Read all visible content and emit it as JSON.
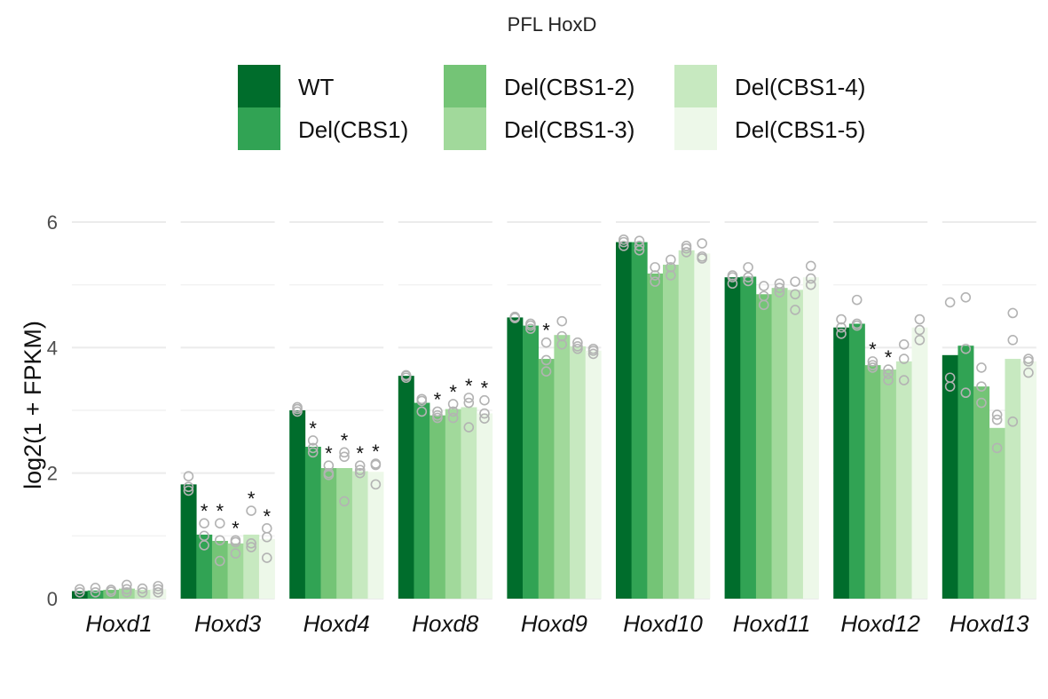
{
  "chart_data": {
    "type": "bar",
    "title": "PFL HoxD",
    "xlabel": "",
    "ylabel": "log2(1 + FPKM)",
    "ylim": [
      0,
      6.2
    ],
    "yticks": [
      0,
      2,
      4,
      6
    ],
    "grid": true,
    "legend_position": "top",
    "categories": [
      "Hoxd1",
      "Hoxd3",
      "Hoxd4",
      "Hoxd8",
      "Hoxd9",
      "Hoxd10",
      "Hoxd11",
      "Hoxd12",
      "Hoxd13"
    ],
    "series": [
      {
        "name": "WT",
        "color": "#006d2c",
        "values": [
          0.12,
          1.82,
          3.0,
          3.55,
          4.48,
          5.68,
          5.12,
          4.32,
          3.88
        ],
        "replicates": [
          [
            0.15,
            0.1
          ],
          [
            1.95,
            1.72,
            1.78
          ],
          [
            3.05,
            2.98,
            3.02
          ],
          [
            3.55,
            3.52,
            3.56
          ],
          [
            4.48,
            4.47,
            4.49
          ],
          [
            5.72,
            5.62,
            5.68
          ],
          [
            5.15,
            5.02,
            5.12
          ],
          [
            4.45,
            4.32,
            4.22
          ],
          [
            4.72,
            3.52,
            3.38
          ]
        ],
        "significant": [
          false,
          false,
          false,
          false,
          false,
          false,
          false,
          false,
          false
        ]
      },
      {
        "name": "Del(CBS1)",
        "color": "#31a354",
        "values": [
          0.13,
          1.02,
          2.42,
          3.12,
          4.35,
          5.68,
          5.13,
          4.38,
          4.03
        ],
        "replicates": [
          [
            0.17,
            0.1
          ],
          [
            1.2,
            1.0,
            0.85
          ],
          [
            2.52,
            2.4,
            2.33
          ],
          [
            3.18,
            2.98,
            3.15
          ],
          [
            4.38,
            4.3,
            4.35
          ],
          [
            5.7,
            5.62,
            5.55
          ],
          [
            5.28,
            5.12,
            5.06
          ],
          [
            4.76,
            4.38,
            4.35
          ],
          [
            4.8,
            3.98,
            3.28
          ]
        ],
        "significant": [
          false,
          true,
          true,
          false,
          false,
          false,
          false,
          false,
          false
        ]
      },
      {
        "name": "Del(CBS1-2)",
        "color": "#74c476",
        "values": [
          0.14,
          0.92,
          2.08,
          2.92,
          3.82,
          5.18,
          4.85,
          3.72,
          3.38
        ],
        "replicates": [
          [
            0.14,
            0.11
          ],
          [
            1.2,
            0.93,
            0.6
          ],
          [
            2.12,
            2.0,
            1.97
          ],
          [
            2.98,
            2.92,
            2.88
          ],
          [
            4.08,
            3.8,
            3.62
          ],
          [
            5.28,
            5.15,
            5.05
          ],
          [
            4.98,
            4.82,
            4.68
          ],
          [
            3.78,
            3.72,
            3.68
          ],
          [
            3.68,
            3.38,
            3.12
          ]
        ],
        "significant": [
          false,
          true,
          true,
          true,
          true,
          false,
          false,
          true,
          false
        ]
      },
      {
        "name": "Del(CBS1-3)",
        "color": "#a1d99b",
        "values": [
          0.16,
          0.88,
          2.08,
          3.02,
          4.2,
          5.32,
          4.95,
          3.65,
          2.72
        ],
        "replicates": [
          [
            0.22,
            0.15,
            0.1
          ],
          [
            0.93,
            0.9,
            0.72
          ],
          [
            2.33,
            2.26,
            1.55
          ],
          [
            3.1,
            2.98,
            2.88
          ],
          [
            4.42,
            4.18,
            4.05
          ],
          [
            5.4,
            5.28,
            5.15
          ],
          [
            5.02,
            4.95,
            4.88
          ],
          [
            3.65,
            3.58,
            3.48
          ],
          [
            2.93,
            2.85,
            2.4
          ]
        ],
        "significant": [
          false,
          true,
          true,
          true,
          false,
          false,
          false,
          true,
          false
        ]
      },
      {
        "name": "Del(CBS1-4)",
        "color": "#c7e9c0",
        "values": [
          0.14,
          1.02,
          2.03,
          3.05,
          4.02,
          5.55,
          4.92,
          3.78,
          3.82
        ],
        "replicates": [
          [
            0.16,
            0.1
          ],
          [
            1.4,
            0.88,
            0.82
          ],
          [
            2.12,
            2.05,
            2.0
          ],
          [
            3.2,
            3.12,
            2.73
          ],
          [
            4.08,
            4.02,
            3.98
          ],
          [
            5.62,
            5.58,
            5.52
          ],
          [
            5.05,
            4.85,
            4.6
          ],
          [
            4.05,
            3.82,
            3.48
          ],
          [
            4.55,
            4.12,
            2.82
          ]
        ],
        "significant": [
          false,
          true,
          true,
          true,
          false,
          false,
          false,
          false,
          false
        ]
      },
      {
        "name": "Del(CBS1-5)",
        "color": "#edf8e9",
        "values": [
          0.15,
          0.95,
          2.02,
          2.95,
          3.95,
          5.5,
          5.12,
          4.32,
          3.78
        ],
        "replicates": [
          [
            0.2,
            0.15,
            0.1
          ],
          [
            1.12,
            0.98,
            0.65
          ],
          [
            2.15,
            2.13,
            1.82
          ],
          [
            3.16,
            2.95,
            2.87
          ],
          [
            3.98,
            3.95,
            3.9
          ],
          [
            5.66,
            5.45,
            5.42
          ],
          [
            5.3,
            5.1,
            5.0
          ],
          [
            4.45,
            4.28,
            4.12
          ],
          [
            3.82,
            3.78,
            3.6
          ]
        ],
        "significant": [
          false,
          true,
          true,
          true,
          false,
          false,
          false,
          false,
          false
        ]
      }
    ]
  }
}
